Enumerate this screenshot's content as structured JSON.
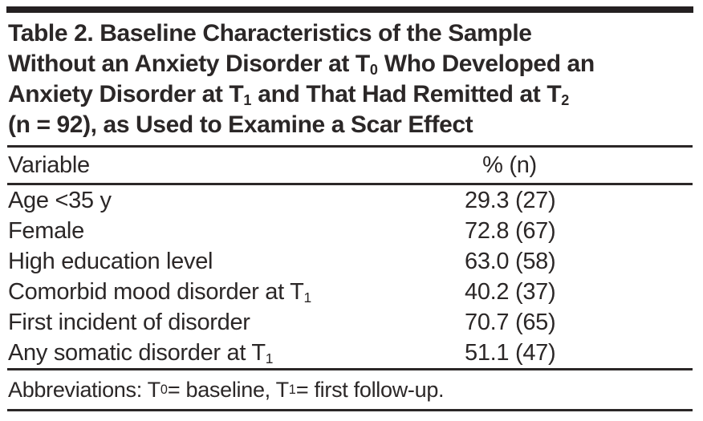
{
  "colors": {
    "ink": "#2b2727",
    "rule": "#2b2727",
    "bar": "#242021",
    "paper": "#ffffff"
  },
  "table": {
    "title_lines": [
      [
        {
          "t": "Table 2. Baseline Characteristics of the Sample"
        }
      ],
      [
        {
          "t": "Without an Anxiety Disorder at T"
        },
        {
          "sub": "0"
        },
        {
          "t": " Who Developed an"
        }
      ],
      [
        {
          "t": "Anxiety Disorder at T"
        },
        {
          "sub": "1"
        },
        {
          "t": " and That Had Remitted at T"
        },
        {
          "sub": "2"
        }
      ],
      [
        {
          "t": "(n = 92), as Used to Examine a Scar Effect"
        }
      ]
    ],
    "columns": {
      "variable": "Variable",
      "value": "% (n)"
    },
    "rows": [
      {
        "variable": [
          {
            "t": "Age <35 y"
          }
        ],
        "value": "29.3 (27)"
      },
      {
        "variable": [
          {
            "t": "Female"
          }
        ],
        "value": "72.8 (67)"
      },
      {
        "variable": [
          {
            "t": "High education level"
          }
        ],
        "value": "63.0 (58)"
      },
      {
        "variable": [
          {
            "t": "Comorbid mood disorder at T"
          },
          {
            "sub": "1"
          }
        ],
        "value": "40.2 (37)"
      },
      {
        "variable": [
          {
            "t": "First incident of disorder"
          }
        ],
        "value": "70.7 (65)"
      },
      {
        "variable": [
          {
            "t": "Any somatic disorder at T"
          },
          {
            "sub": "1"
          }
        ],
        "value": "51.1 (47)"
      }
    ],
    "footnote": [
      {
        "t": "Abbreviations: T"
      },
      {
        "sub": "0"
      },
      {
        "t": " = baseline, T"
      },
      {
        "sub": "1"
      },
      {
        "t": " = first follow-up."
      }
    ]
  }
}
